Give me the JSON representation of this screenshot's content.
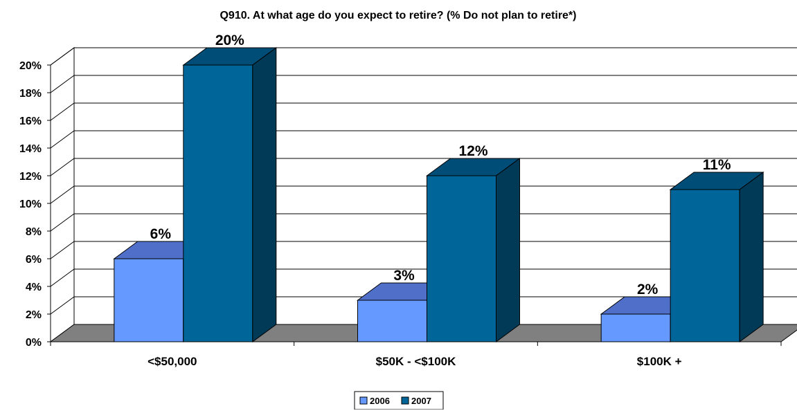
{
  "chart_data": {
    "type": "bar",
    "title": "Q910. At what age do you expect to retire? (% Do not plan to retire*)",
    "xlabel": "",
    "ylabel": "",
    "categories": [
      "<$50,000",
      "$50K - <$100K",
      "$100K +"
    ],
    "series": [
      {
        "name": "2006",
        "values": [
          6,
          3,
          2
        ],
        "value_labels": [
          "6%",
          "3%",
          "2%"
        ],
        "color": "#6699FF",
        "top_color": "#4F6FC9",
        "side_color": "#3B59A6"
      },
      {
        "name": "2007",
        "values": [
          20,
          12,
          11
        ],
        "value_labels": [
          "20%",
          "12%",
          "11%"
        ],
        "color": "#006699",
        "top_color": "#004E78",
        "side_color": "#003A57"
      }
    ],
    "ylim": [
      0,
      20
    ],
    "yticks": [
      0,
      2,
      4,
      6,
      8,
      10,
      12,
      14,
      16,
      18,
      20
    ],
    "ytick_labels": [
      "0%",
      "2%",
      "4%",
      "6%",
      "8%",
      "10%",
      "12%",
      "14%",
      "16%",
      "18%",
      "20%"
    ],
    "grid": true,
    "legend_position": "bottom-center",
    "style": "3d-clustered-column",
    "floor_color": "#808080"
  }
}
